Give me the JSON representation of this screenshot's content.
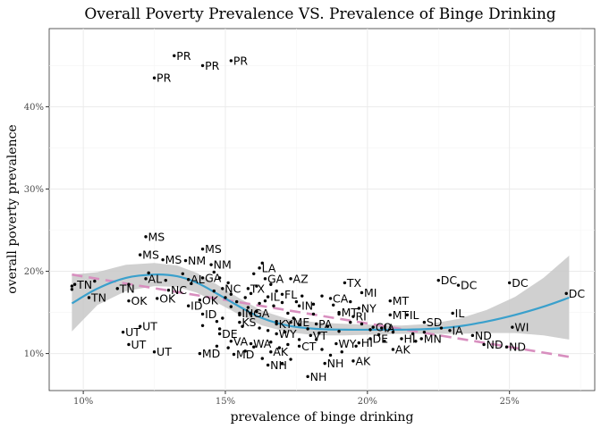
{
  "chart_data": {
    "type": "scatter",
    "title": "Overall Poverty Prevalence VS. Prevalence of Binge Drinking",
    "xlabel": "prevalence of binge drinking",
    "ylabel": "overall poverty prevalence",
    "xlim": [
      8.8,
      28.0
    ],
    "ylim": [
      5.5,
      49.5
    ],
    "x_ticks": [
      10,
      15,
      20,
      25
    ],
    "x_tick_labels": [
      "10%",
      "15%",
      "20%",
      "25%"
    ],
    "y_ticks": [
      10,
      20,
      30,
      40
    ],
    "y_tick_labels": [
      "10%",
      "20%",
      "30%",
      "40%"
    ],
    "grid": true,
    "colors": {
      "smooth": "#3aa0cc",
      "band": "#c8c8c8",
      "linear": "#d88fbf",
      "point": "#000000"
    },
    "labeled_points": [
      {
        "label": "PR",
        "x": 13.2,
        "y": 46.2
      },
      {
        "label": "PR",
        "x": 14.2,
        "y": 45.0
      },
      {
        "label": "PR",
        "x": 15.2,
        "y": 45.6
      },
      {
        "label": "PR",
        "x": 12.5,
        "y": 43.5
      },
      {
        "label": "MS",
        "x": 12.2,
        "y": 24.2
      },
      {
        "label": "MS",
        "x": 14.2,
        "y": 22.7
      },
      {
        "label": "MS",
        "x": 12.0,
        "y": 22.0
      },
      {
        "label": "MS",
        "x": 12.8,
        "y": 21.4
      },
      {
        "label": "NM",
        "x": 13.6,
        "y": 21.3
      },
      {
        "label": "NM",
        "x": 14.5,
        "y": 20.8
      },
      {
        "label": "GA",
        "x": 14.2,
        "y": 19.2
      },
      {
        "label": "LA",
        "x": 16.2,
        "y": 20.4
      },
      {
        "label": "GA",
        "x": 16.4,
        "y": 19.1
      },
      {
        "label": "AZ",
        "x": 17.3,
        "y": 19.1
      },
      {
        "label": "TX",
        "x": 19.2,
        "y": 18.6
      },
      {
        "label": "NC",
        "x": 14.9,
        "y": 17.9
      },
      {
        "label": "TX",
        "x": 15.8,
        "y": 17.9
      },
      {
        "label": "AL",
        "x": 12.2,
        "y": 19.1
      },
      {
        "label": "AL",
        "x": 13.7,
        "y": 19.0
      },
      {
        "label": "TN",
        "x": 9.7,
        "y": 18.4
      },
      {
        "label": "TN",
        "x": 10.2,
        "y": 16.8
      },
      {
        "label": "TN",
        "x": 11.2,
        "y": 17.9
      },
      {
        "label": "OK",
        "x": 11.6,
        "y": 16.4
      },
      {
        "label": "NC",
        "x": 13.0,
        "y": 17.7
      },
      {
        "label": "OK",
        "x": 12.6,
        "y": 16.7
      },
      {
        "label": "OK",
        "x": 14.1,
        "y": 16.5
      },
      {
        "label": "ID",
        "x": 13.7,
        "y": 15.8
      },
      {
        "label": "ID",
        "x": 14.2,
        "y": 14.8
      },
      {
        "label": "IN",
        "x": 15.5,
        "y": 14.9
      },
      {
        "label": "GA",
        "x": 15.9,
        "y": 14.9
      },
      {
        "label": "IL",
        "x": 16.5,
        "y": 16.9
      },
      {
        "label": "FL",
        "x": 17.0,
        "y": 17.2
      },
      {
        "label": "KS",
        "x": 15.5,
        "y": 13.8
      },
      {
        "label": "KY",
        "x": 16.8,
        "y": 13.6
      },
      {
        "label": "IN",
        "x": 17.6,
        "y": 15.8
      },
      {
        "label": "CA",
        "x": 18.7,
        "y": 16.7
      },
      {
        "label": "MI",
        "x": 19.8,
        "y": 17.4
      },
      {
        "label": "NY",
        "x": 19.7,
        "y": 15.5
      },
      {
        "label": "MT",
        "x": 19.0,
        "y": 15.0
      },
      {
        "label": "RI",
        "x": 19.5,
        "y": 14.5
      },
      {
        "label": "PA",
        "x": 18.2,
        "y": 13.6
      },
      {
        "label": "ME",
        "x": 17.3,
        "y": 13.8
      },
      {
        "label": "CO",
        "x": 20.2,
        "y": 13.2
      },
      {
        "label": "MT",
        "x": 20.8,
        "y": 16.4
      },
      {
        "label": "MT",
        "x": 20.8,
        "y": 14.7
      },
      {
        "label": "IL",
        "x": 21.4,
        "y": 14.7
      },
      {
        "label": "DC",
        "x": 22.5,
        "y": 18.9
      },
      {
        "label": "DC",
        "x": 23.2,
        "y": 18.3
      },
      {
        "label": "DC",
        "x": 25.0,
        "y": 18.6
      },
      {
        "label": "DC",
        "x": 27.0,
        "y": 17.3
      },
      {
        "label": "IL",
        "x": 23.0,
        "y": 14.9
      },
      {
        "label": "SD",
        "x": 22.0,
        "y": 13.8
      },
      {
        "label": "IA",
        "x": 22.9,
        "y": 12.8
      },
      {
        "label": "IA",
        "x": 20.5,
        "y": 13.1
      },
      {
        "label": "WI",
        "x": 25.1,
        "y": 13.2
      },
      {
        "label": "ND",
        "x": 23.7,
        "y": 12.2
      },
      {
        "label": "ND",
        "x": 24.1,
        "y": 11.1
      },
      {
        "label": "ND",
        "x": 24.9,
        "y": 10.8
      },
      {
        "label": "MN",
        "x": 21.9,
        "y": 11.8
      },
      {
        "label": "HI",
        "x": 21.2,
        "y": 11.8
      },
      {
        "label": "DE",
        "x": 20.1,
        "y": 11.8
      },
      {
        "label": "AK",
        "x": 20.9,
        "y": 10.5
      },
      {
        "label": "AK",
        "x": 19.5,
        "y": 9.1
      },
      {
        "label": "WY",
        "x": 18.9,
        "y": 11.2
      },
      {
        "label": "HI",
        "x": 19.7,
        "y": 11.3
      },
      {
        "label": "NH",
        "x": 18.5,
        "y": 8.8
      },
      {
        "label": "NH",
        "x": 17.9,
        "y": 7.2
      },
      {
        "label": "CT",
        "x": 17.6,
        "y": 10.9
      },
      {
        "label": "VT",
        "x": 18.0,
        "y": 12.2
      },
      {
        "label": "WY",
        "x": 16.8,
        "y": 12.4
      },
      {
        "label": "WA",
        "x": 15.9,
        "y": 11.2
      },
      {
        "label": "VA",
        "x": 15.2,
        "y": 11.5
      },
      {
        "label": "AK",
        "x": 16.6,
        "y": 10.2
      },
      {
        "label": "NH",
        "x": 16.5,
        "y": 8.6
      },
      {
        "label": "DE",
        "x": 14.8,
        "y": 12.4
      },
      {
        "label": "MD",
        "x": 14.1,
        "y": 10.0
      },
      {
        "label": "MD",
        "x": 15.3,
        "y": 9.9
      },
      {
        "label": "UT",
        "x": 11.4,
        "y": 12.6
      },
      {
        "label": "UT",
        "x": 12.0,
        "y": 13.3
      },
      {
        "label": "UT",
        "x": 11.6,
        "y": 11.1
      },
      {
        "label": "UT",
        "x": 12.5,
        "y": 10.2
      }
    ],
    "unlabeled_points": [
      [
        9.6,
        18.2
      ],
      [
        9.6,
        17.8
      ],
      [
        10.4,
        18.8
      ],
      [
        11.6,
        18.4
      ],
      [
        12.3,
        19.8
      ],
      [
        12.9,
        18.9
      ],
      [
        13.5,
        19.7
      ],
      [
        13.8,
        18.5
      ],
      [
        14.6,
        19.9
      ],
      [
        14.8,
        19.2
      ],
      [
        14.6,
        17.6
      ],
      [
        15.1,
        18.6
      ],
      [
        15.2,
        17.2
      ],
      [
        15.4,
        16.3
      ],
      [
        15.7,
        16.8
      ],
      [
        15.9,
        17.3
      ],
      [
        16.1,
        18.2
      ],
      [
        16.3,
        21.0
      ],
      [
        16.0,
        19.7
      ],
      [
        16.6,
        18.4
      ],
      [
        16.8,
        17.6
      ],
      [
        16.2,
        16.1
      ],
      [
        15.2,
        15.7
      ],
      [
        15.0,
        16.8
      ],
      [
        14.9,
        14.3
      ],
      [
        15.5,
        14.7
      ],
      [
        15.8,
        15.6
      ],
      [
        16.4,
        16.4
      ],
      [
        16.1,
        15.1
      ],
      [
        16.7,
        15.8
      ],
      [
        17.0,
        16.2
      ],
      [
        17.2,
        14.9
      ],
      [
        17.5,
        16.3
      ],
      [
        17.7,
        17.0
      ],
      [
        18.1,
        16.0
      ],
      [
        18.4,
        17.0
      ],
      [
        18.8,
        15.9
      ],
      [
        19.0,
        14.8
      ],
      [
        19.4,
        16.3
      ],
      [
        18.1,
        14.8
      ],
      [
        17.4,
        14.3
      ],
      [
        17.6,
        13.5
      ],
      [
        16.8,
        13.9
      ],
      [
        16.2,
        13.1
      ],
      [
        15.6,
        13.3
      ],
      [
        14.7,
        13.9
      ],
      [
        14.2,
        13.4
      ],
      [
        16.5,
        12.8
      ],
      [
        17.1,
        12.6
      ],
      [
        17.9,
        13.0
      ],
      [
        18.3,
        12.5
      ],
      [
        18.6,
        13.3
      ],
      [
        19.0,
        12.7
      ],
      [
        19.4,
        13.8
      ],
      [
        19.8,
        13.6
      ],
      [
        20.1,
        12.9
      ],
      [
        20.4,
        12.3
      ],
      [
        20.9,
        12.6
      ],
      [
        21.6,
        12.4
      ],
      [
        22.0,
        12.6
      ],
      [
        22.6,
        13.1
      ],
      [
        21.7,
        11.5
      ],
      [
        20.6,
        11.5
      ],
      [
        19.6,
        10.9
      ],
      [
        19.1,
        10.2
      ],
      [
        18.7,
        9.8
      ],
      [
        18.4,
        10.5
      ],
      [
        18.2,
        11.7
      ],
      [
        17.6,
        11.7
      ],
      [
        17.2,
        11.1
      ],
      [
        16.9,
        10.7
      ],
      [
        16.6,
        11.4
      ],
      [
        16.0,
        10.8
      ],
      [
        15.7,
        10.3
      ],
      [
        15.1,
        10.7
      ],
      [
        14.7,
        10.9
      ],
      [
        16.3,
        9.4
      ],
      [
        17.3,
        9.3
      ],
      [
        17.0,
        8.8
      ],
      [
        14.8,
        13.0
      ]
    ],
    "linear_fit": [
      [
        9.6,
        19.6
      ],
      [
        27.1,
        9.6
      ]
    ],
    "smooth_fit": {
      "x": [
        9.6,
        10.5,
        11.5,
        12.5,
        13.3,
        14.0,
        14.7,
        15.5,
        16.3,
        17.2,
        18.2,
        19.2,
        20.2,
        21.2,
        22.2,
        23.2,
        24.2,
        25.2,
        26.2,
        27.1
      ],
      "y": [
        16.1,
        17.9,
        19.2,
        19.6,
        19.4,
        18.6,
        17.3,
        15.7,
        14.3,
        13.4,
        13.0,
        12.9,
        12.9,
        12.9,
        13.0,
        13.3,
        13.9,
        14.7,
        15.7,
        16.8
      ],
      "lower": [
        12.7,
        15.9,
        17.6,
        18.2,
        18.1,
        17.4,
        16.2,
        14.7,
        13.4,
        12.6,
        12.2,
        12.2,
        12.3,
        12.4,
        12.4,
        12.4,
        12.5,
        12.5,
        12.2,
        11.7
      ],
      "upper": [
        19.6,
        19.9,
        20.8,
        21.0,
        20.7,
        19.8,
        18.4,
        16.7,
        15.2,
        14.2,
        13.8,
        13.6,
        13.5,
        13.4,
        13.6,
        14.2,
        15.3,
        16.9,
        19.2,
        21.9
      ]
    }
  }
}
